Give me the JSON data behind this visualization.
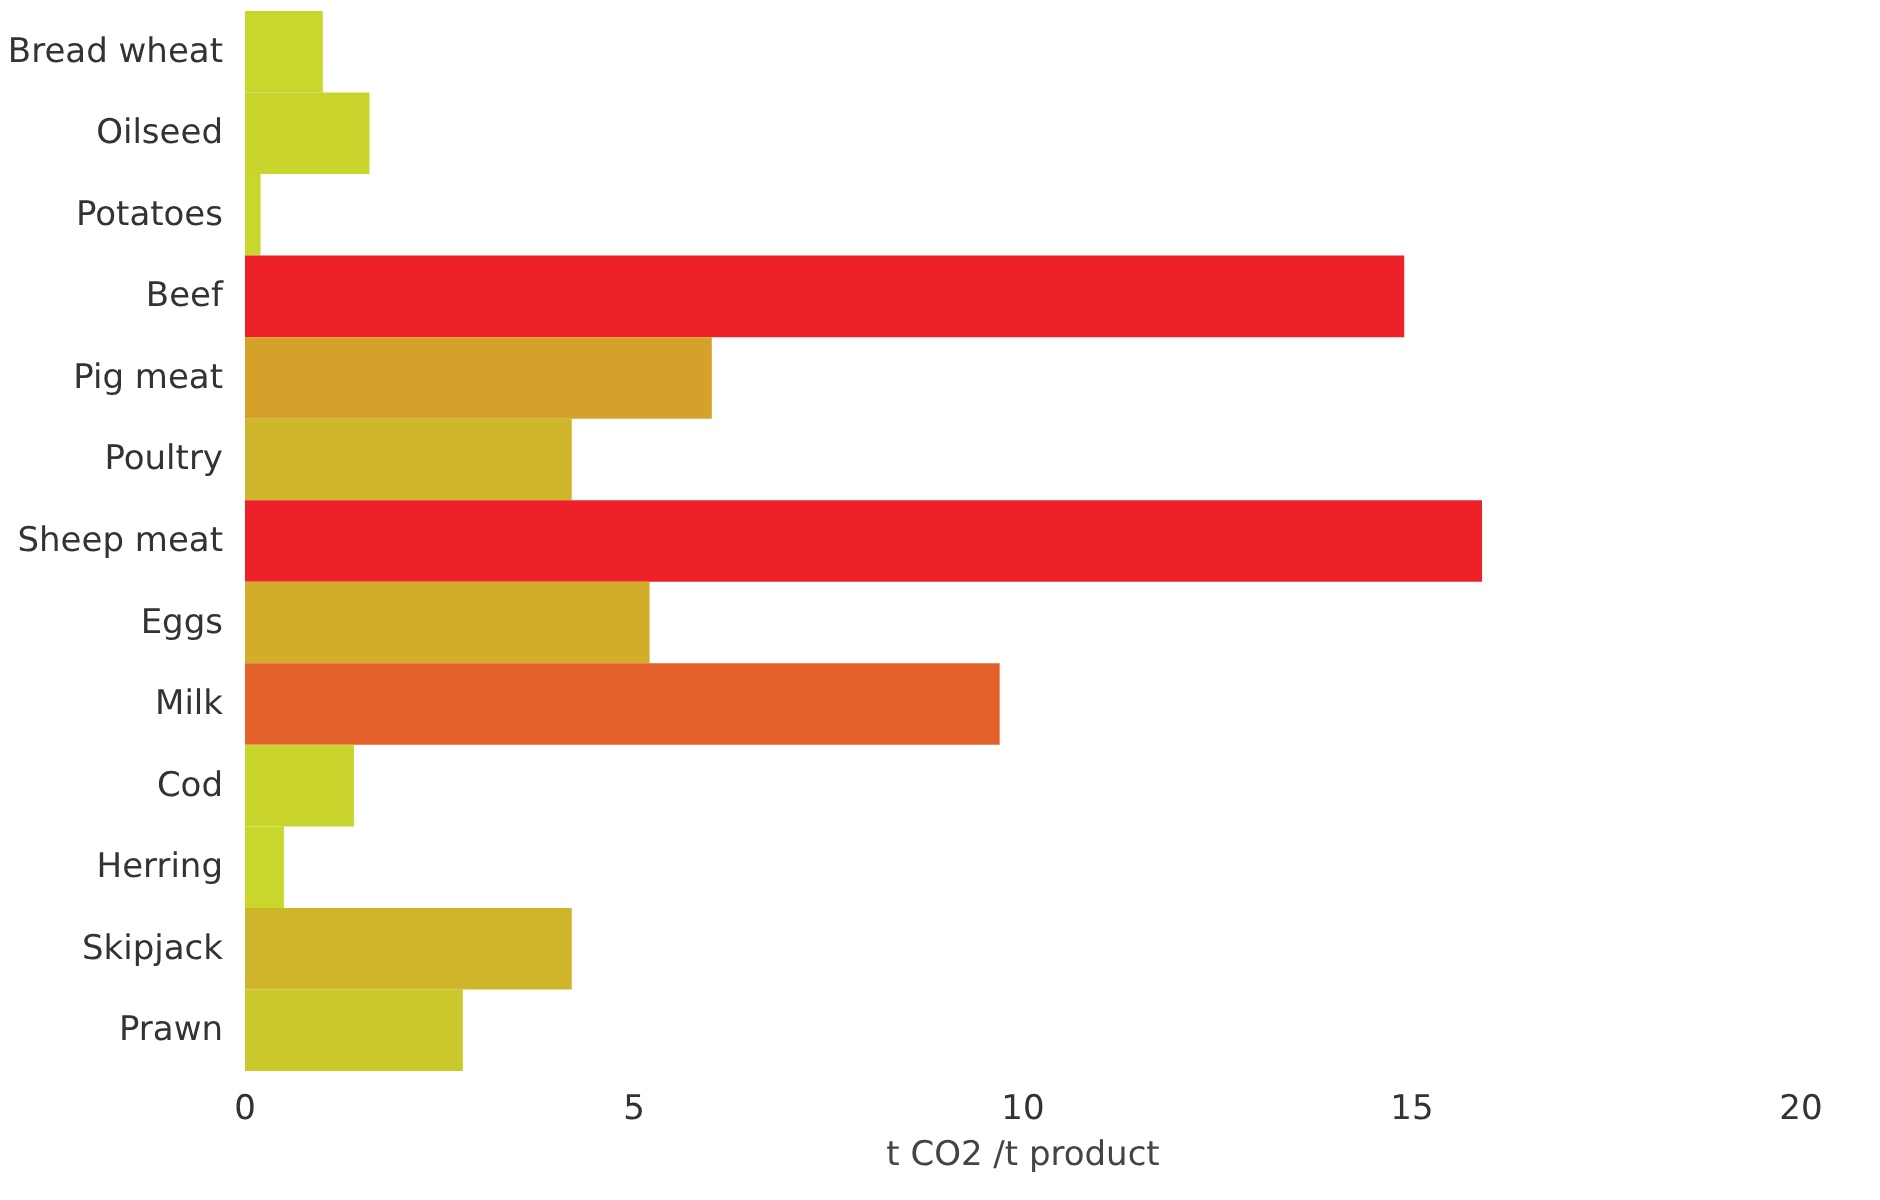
{
  "chart_data": {
    "type": "bar",
    "orientation": "horizontal",
    "xlabel": "t CO2 /t product",
    "categories": [
      "Bread wheat",
      "Oilseed",
      "Potatoes",
      "Beef",
      "Pig meat",
      "Poultry",
      "Sheep meat",
      "Eggs",
      "Milk",
      "Cod",
      "Herring",
      "Skipjack",
      "Prawn"
    ],
    "values": [
      1.0,
      1.6,
      0.2,
      14.9,
      6.0,
      4.2,
      15.9,
      5.2,
      9.7,
      1.4,
      0.5,
      4.2,
      2.8
    ],
    "colors": [
      "#c9d62c",
      "#c9d52c",
      "#c9d72c",
      "#ee2128",
      "#d4a22a",
      "#cfb52a",
      "#ee2128",
      "#d2ac2a",
      "#e4622a",
      "#c9d52c",
      "#c9d72c",
      "#cfb52a",
      "#cbc82b"
    ],
    "xlim": [
      0,
      20
    ],
    "xticks": [
      0,
      5,
      10,
      15,
      20
    ],
    "grid": false
  }
}
